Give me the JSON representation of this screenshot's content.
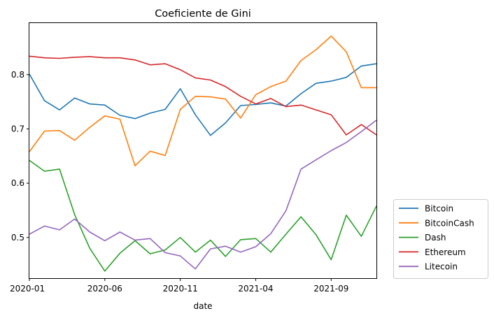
{
  "chart_data": {
    "type": "line",
    "title": "Coeficiente de Gini",
    "xlabel": "date",
    "ylabel": "",
    "x": [
      "2020-01",
      "2020-02",
      "2020-03",
      "2020-04",
      "2020-05",
      "2020-06",
      "2020-07",
      "2020-08",
      "2020-09",
      "2020-10",
      "2020-11",
      "2020-12",
      "2021-01",
      "2021-02",
      "2021-03",
      "2021-04",
      "2021-05",
      "2021-06",
      "2021-07",
      "2021-08",
      "2021-09",
      "2021-10",
      "2021-11",
      "2021-12"
    ],
    "x_ticks": [
      "2020-01",
      "2020-06",
      "2020-11",
      "2021-04",
      "2021-09"
    ],
    "y_ticks": [
      "0.5",
      "0.6",
      "0.7",
      "0.8"
    ],
    "ylim": [
      0.425,
      0.895
    ],
    "grid": false,
    "legend_position": "lower-right outside",
    "series": [
      {
        "name": "Bitcoin",
        "color": "#1f77b4",
        "values": [
          0.801,
          0.752,
          0.735,
          0.757,
          0.746,
          0.744,
          0.725,
          0.719,
          0.729,
          0.736,
          0.774,
          0.726,
          0.688,
          0.711,
          0.743,
          0.745,
          0.748,
          0.742,
          0.765,
          0.784,
          0.788,
          0.795,
          0.816,
          0.82
        ]
      },
      {
        "name": "BitcoinCash",
        "color": "#ff7f0e",
        "values": [
          0.658,
          0.696,
          0.697,
          0.679,
          0.703,
          0.724,
          0.718,
          0.632,
          0.659,
          0.651,
          0.736,
          0.76,
          0.759,
          0.755,
          0.72,
          0.763,
          0.778,
          0.788,
          0.826,
          0.846,
          0.871,
          0.842,
          0.776,
          0.776
        ]
      },
      {
        "name": "Dash",
        "color": "#2ca02c",
        "values": [
          0.642,
          0.622,
          0.626,
          0.542,
          0.48,
          0.438,
          0.471,
          0.494,
          0.47,
          0.477,
          0.5,
          0.473,
          0.495,
          0.465,
          0.496,
          0.498,
          0.473,
          0.506,
          0.538,
          0.505,
          0.459,
          0.541,
          0.502,
          0.558
        ]
      },
      {
        "name": "Ethereum",
        "color": "#d62728",
        "values": [
          0.834,
          0.831,
          0.83,
          0.832,
          0.833,
          0.831,
          0.831,
          0.827,
          0.818,
          0.82,
          0.809,
          0.794,
          0.79,
          0.778,
          0.76,
          0.746,
          0.756,
          0.741,
          0.744,
          0.735,
          0.726,
          0.689,
          0.708,
          0.689
        ]
      },
      {
        "name": "Litecoin",
        "color": "#9467bd",
        "values": [
          0.506,
          0.521,
          0.514,
          0.534,
          0.51,
          0.494,
          0.51,
          0.495,
          0.498,
          0.472,
          0.466,
          0.442,
          0.479,
          0.484,
          0.473,
          0.483,
          0.507,
          0.549,
          0.626,
          0.643,
          0.66,
          0.675,
          0.695,
          0.716
        ]
      }
    ]
  }
}
